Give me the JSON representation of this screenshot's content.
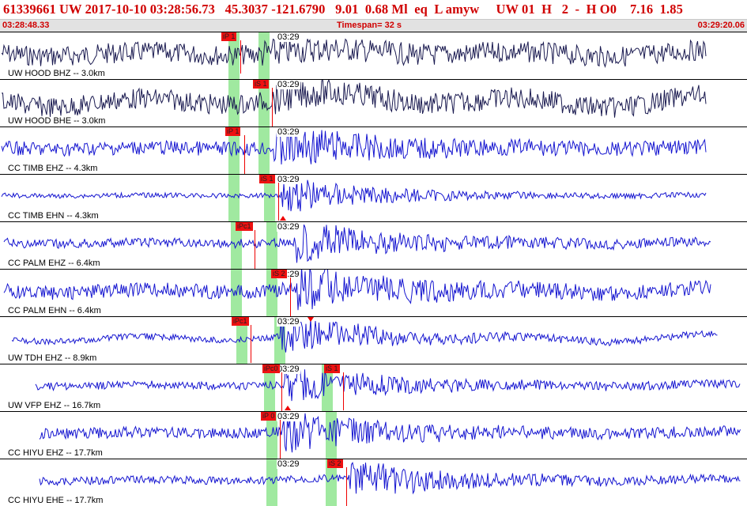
{
  "header": {
    "title": "61339661 UW 2017-10-10 03:28:56.73   45.3037 -121.6790   9.01  0.68 Ml  eq  L amyw     UW 01  H   2  -  H O0    7.16  1.85",
    "start_time": "03:28:48.33",
    "timespan": "Timespan=  32 s",
    "end_time": "03:29:20.06"
  },
  "colors": {
    "trace_hood": "#1a1a50",
    "trace": "#1515d0",
    "pick": "#ee1111",
    "green_band": "#9be89b",
    "title_text": "#d00000"
  },
  "panels": [
    {
      "label": "UW HOOD BHZ -- 3.0km",
      "time_label": "03:29",
      "picks": [
        {
          "text": "iP 1"
        }
      ],
      "trace_color": "dark",
      "green": [
        297,
        335
      ]
    },
    {
      "label": "UW HOOD BHE -- 3.0km",
      "time_label": "03:29",
      "picks": [
        {
          "text": "iS 1"
        }
      ],
      "trace_color": "dark",
      "green": [
        297,
        335
      ]
    },
    {
      "label": "CC TIMB EHZ -- 4.3km",
      "time_label": "03:29",
      "picks": [
        {
          "text": "iP 1"
        }
      ],
      "trace_color": "blue",
      "green": [
        297,
        335
      ]
    },
    {
      "label": "CC TIMB EHN -- 4.3km",
      "time_label": "03:29",
      "picks": [
        {
          "text": "iS 1"
        }
      ],
      "trace_color": "blue",
      "green": [
        297,
        342
      ]
    },
    {
      "label": "CC PALM EHZ -- 6.4km",
      "time_label": "03:29",
      "picks": [
        {
          "text": "iPc1"
        }
      ],
      "trace_color": "blue",
      "green": [
        300,
        345
      ]
    },
    {
      "label": "CC PALM EHN -- 6.4km",
      "time_label": "03:29",
      "picks": [
        {
          "text": "iS 2"
        }
      ],
      "trace_color": "blue",
      "green": [
        300,
        345
      ]
    },
    {
      "label": "UW TDH EHZ -- 8.9km",
      "time_label": "03:29",
      "picks": [
        {
          "text": "iPc1"
        }
      ],
      "trace_color": "blue",
      "green": [
        307,
        355
      ]
    },
    {
      "label": "UW VFP EHZ -- 16.7km",
      "time_label": "03:29",
      "picks": [
        {
          "text": "iPc0"
        },
        {
          "text": "iS 1"
        }
      ],
      "trace_color": "blue",
      "green": [
        342,
        415
      ]
    },
    {
      "label": "CC HIYU EHZ -- 17.7km",
      "time_label": "03:29",
      "picks": [
        {
          "text": "iP 0"
        }
      ],
      "trace_color": "blue",
      "green": [
        345,
        420
      ]
    },
    {
      "label": "CC HIYU EHE -- 17.7km",
      "time_label": "03:29",
      "picks": [
        {
          "text": "iS 2"
        }
      ],
      "trace_color": "blue",
      "green": [
        345,
        420
      ]
    }
  ]
}
